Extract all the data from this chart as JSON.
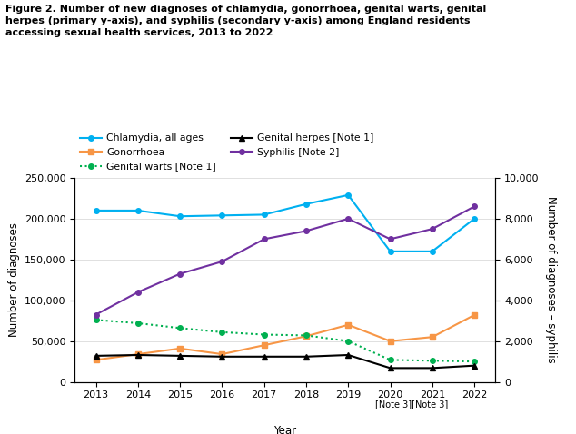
{
  "years": [
    2013,
    2014,
    2015,
    2016,
    2017,
    2018,
    2019,
    2020,
    2021,
    2022
  ],
  "chlamydia": [
    210000,
    210000,
    203000,
    204000,
    205000,
    218000,
    229000,
    160000,
    160000,
    200000
  ],
  "gonorrhoea": [
    27000,
    34000,
    41000,
    34000,
    45000,
    56000,
    70000,
    50000,
    55000,
    82000
  ],
  "genital_warts": [
    76000,
    72000,
    66000,
    61000,
    58000,
    57000,
    50000,
    27000,
    26000,
    25000
  ],
  "genital_herpes": [
    32000,
    33000,
    32000,
    31000,
    31000,
    31000,
    33000,
    17000,
    17000,
    20000
  ],
  "syphilis": [
    3300,
    4400,
    5300,
    5900,
    7000,
    7400,
    8000,
    7000,
    7500,
    8600
  ],
  "title": "Figure 2. Number of new diagnoses of chlamydia, gonorrhoea, genital warts, genital\nherpes (primary y-axis), and syphilis (secondary y-axis) among England residents\naccessing sexual health services, 2013 to 2022",
  "ylabel_left": "Number of diagnoses",
  "ylabel_right": "Number of diagnoses – syphilis",
  "xlabel": "Year",
  "ylim_left": [
    0,
    250000
  ],
  "ylim_right": [
    0,
    10000
  ],
  "yticks_left": [
    0,
    50000,
    100000,
    150000,
    200000,
    250000
  ],
  "yticks_right": [
    0,
    2000,
    4000,
    6000,
    8000,
    10000
  ],
  "legend_labels": [
    "Chlamydia, all ages",
    "Gonorrhoea",
    "Genital warts [Note 1]",
    "Genital herpes [Note 1]",
    "Syphilis [Note 2]"
  ],
  "colors": {
    "chlamydia": "#00b0f0",
    "gonorrhoea": "#f79646",
    "genital_warts": "#00b050",
    "genital_herpes": "#000000",
    "syphilis": "#7030a0"
  },
  "background_color": "#ffffff"
}
